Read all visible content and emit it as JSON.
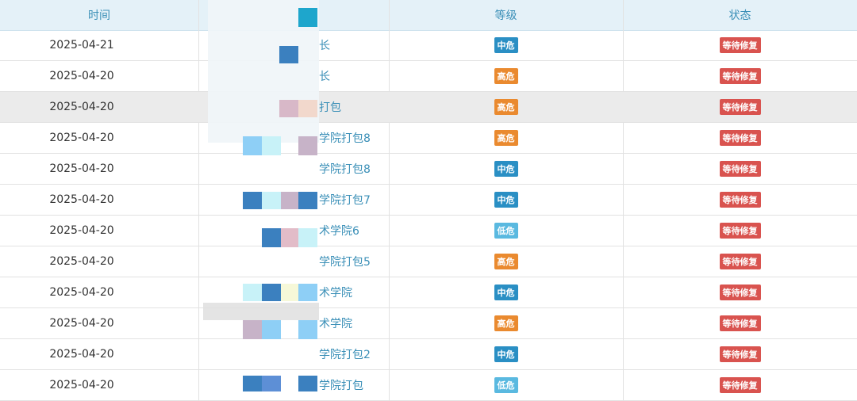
{
  "table": {
    "headers": [
      "时间",
      "等级",
      "状态"
    ],
    "level_colors": {
      "中危": "#2a8fc4",
      "高危": "#ea8a2f",
      "低危": "#5ab9e0"
    },
    "status_color": "#d9534f",
    "highlight_row": 2,
    "rows": [
      {
        "time": "2025-04-21",
        "name": "长",
        "level": "中危",
        "status": "等待修复"
      },
      {
        "time": "2025-04-20",
        "name": "长",
        "level": "高危",
        "status": "等待修复"
      },
      {
        "time": "2025-04-20",
        "name": "打包",
        "level": "高危",
        "status": "等待修复"
      },
      {
        "time": "2025-04-20",
        "name": "学院打包8",
        "level": "高危",
        "status": "等待修复"
      },
      {
        "time": "2025-04-20",
        "name": "学院打包8",
        "level": "中危",
        "status": "等待修复"
      },
      {
        "time": "2025-04-20",
        "name": "学院打包7",
        "level": "中危",
        "status": "等待修复"
      },
      {
        "time": "2025-04-20",
        "name": "术学院6",
        "level": "低危",
        "status": "等待修复"
      },
      {
        "time": "2025-04-20",
        "name": "学院打包5",
        "level": "高危",
        "status": "等待修复"
      },
      {
        "time": "2025-04-20",
        "name": "术学院",
        "level": "中危",
        "status": "等待修复"
      },
      {
        "time": "2025-04-20",
        "name": "术学院",
        "level": "高危",
        "status": "等待修复"
      },
      {
        "time": "2025-04-20",
        "name": "学院打包2",
        "level": "中危",
        "status": "等待修复"
      },
      {
        "time": "2025-04-20",
        "name": "学院打包",
        "level": "低危",
        "status": "等待修复"
      }
    ]
  }
}
